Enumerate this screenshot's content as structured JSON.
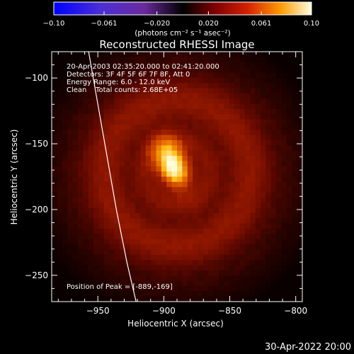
{
  "chart_data": {
    "type": "heatmap",
    "title": "Reconstructed RHESSI Image",
    "xlabel": "Heliocentric X (arcsec)",
    "ylabel": "Heliocentric Y (arcsec)",
    "xlim": [
      -985,
      -795
    ],
    "ylim": [
      -270,
      -80
    ],
    "xticks": [
      -950,
      -900,
      -850,
      -800
    ],
    "yticks": [
      -100,
      -150,
      -200,
      -250
    ],
    "colorbar": {
      "range": [
        -0.1,
        0.1
      ],
      "ticks": [
        -0.1,
        -0.061,
        -0.02,
        0.02,
        0.061,
        0.1
      ],
      "tick_labels": [
        "−0.10",
        "−0.061",
        "−0.020",
        "0.020",
        "0.061",
        "0.10"
      ],
      "unit_label": "(photons cm⁻² s⁻¹ asec⁻²)"
    },
    "peak": {
      "x": -889,
      "y": -169,
      "value": 0.1
    },
    "source": {
      "x": -893,
      "y": -167,
      "sx": 9,
      "sy": 14,
      "angle_deg": -25
    },
    "background_ring_radius": 55,
    "limb_curve": [
      [
        -957,
        -80
      ],
      [
        -950,
        -120
      ],
      [
        -943,
        -160
      ],
      [
        -936,
        -200
      ],
      [
        -928,
        -240
      ],
      [
        -921,
        -270
      ]
    ],
    "annotations": [
      "20-Apr-2003 02:35:20.000 to 02:41:20.000",
      "Detectors: 3F 4F 5F 6F 7F 8F, Att 0",
      "Energy Range: 6.0 - 12.0 keV",
      "Clean    Total counts: 2.68E+05"
    ],
    "peak_label": "Position of Peak = [-889,-169]",
    "axis_tick_labels_x": [
      "−950",
      "−900",
      "−850",
      "−800"
    ],
    "axis_tick_labels_y": [
      "−100",
      "−150",
      "−200",
      "−250"
    ]
  },
  "footer": {
    "timestamp": "30-Apr-2022 20:00"
  },
  "colors": {
    "background": "#000000",
    "foreground": "#ffffff"
  }
}
